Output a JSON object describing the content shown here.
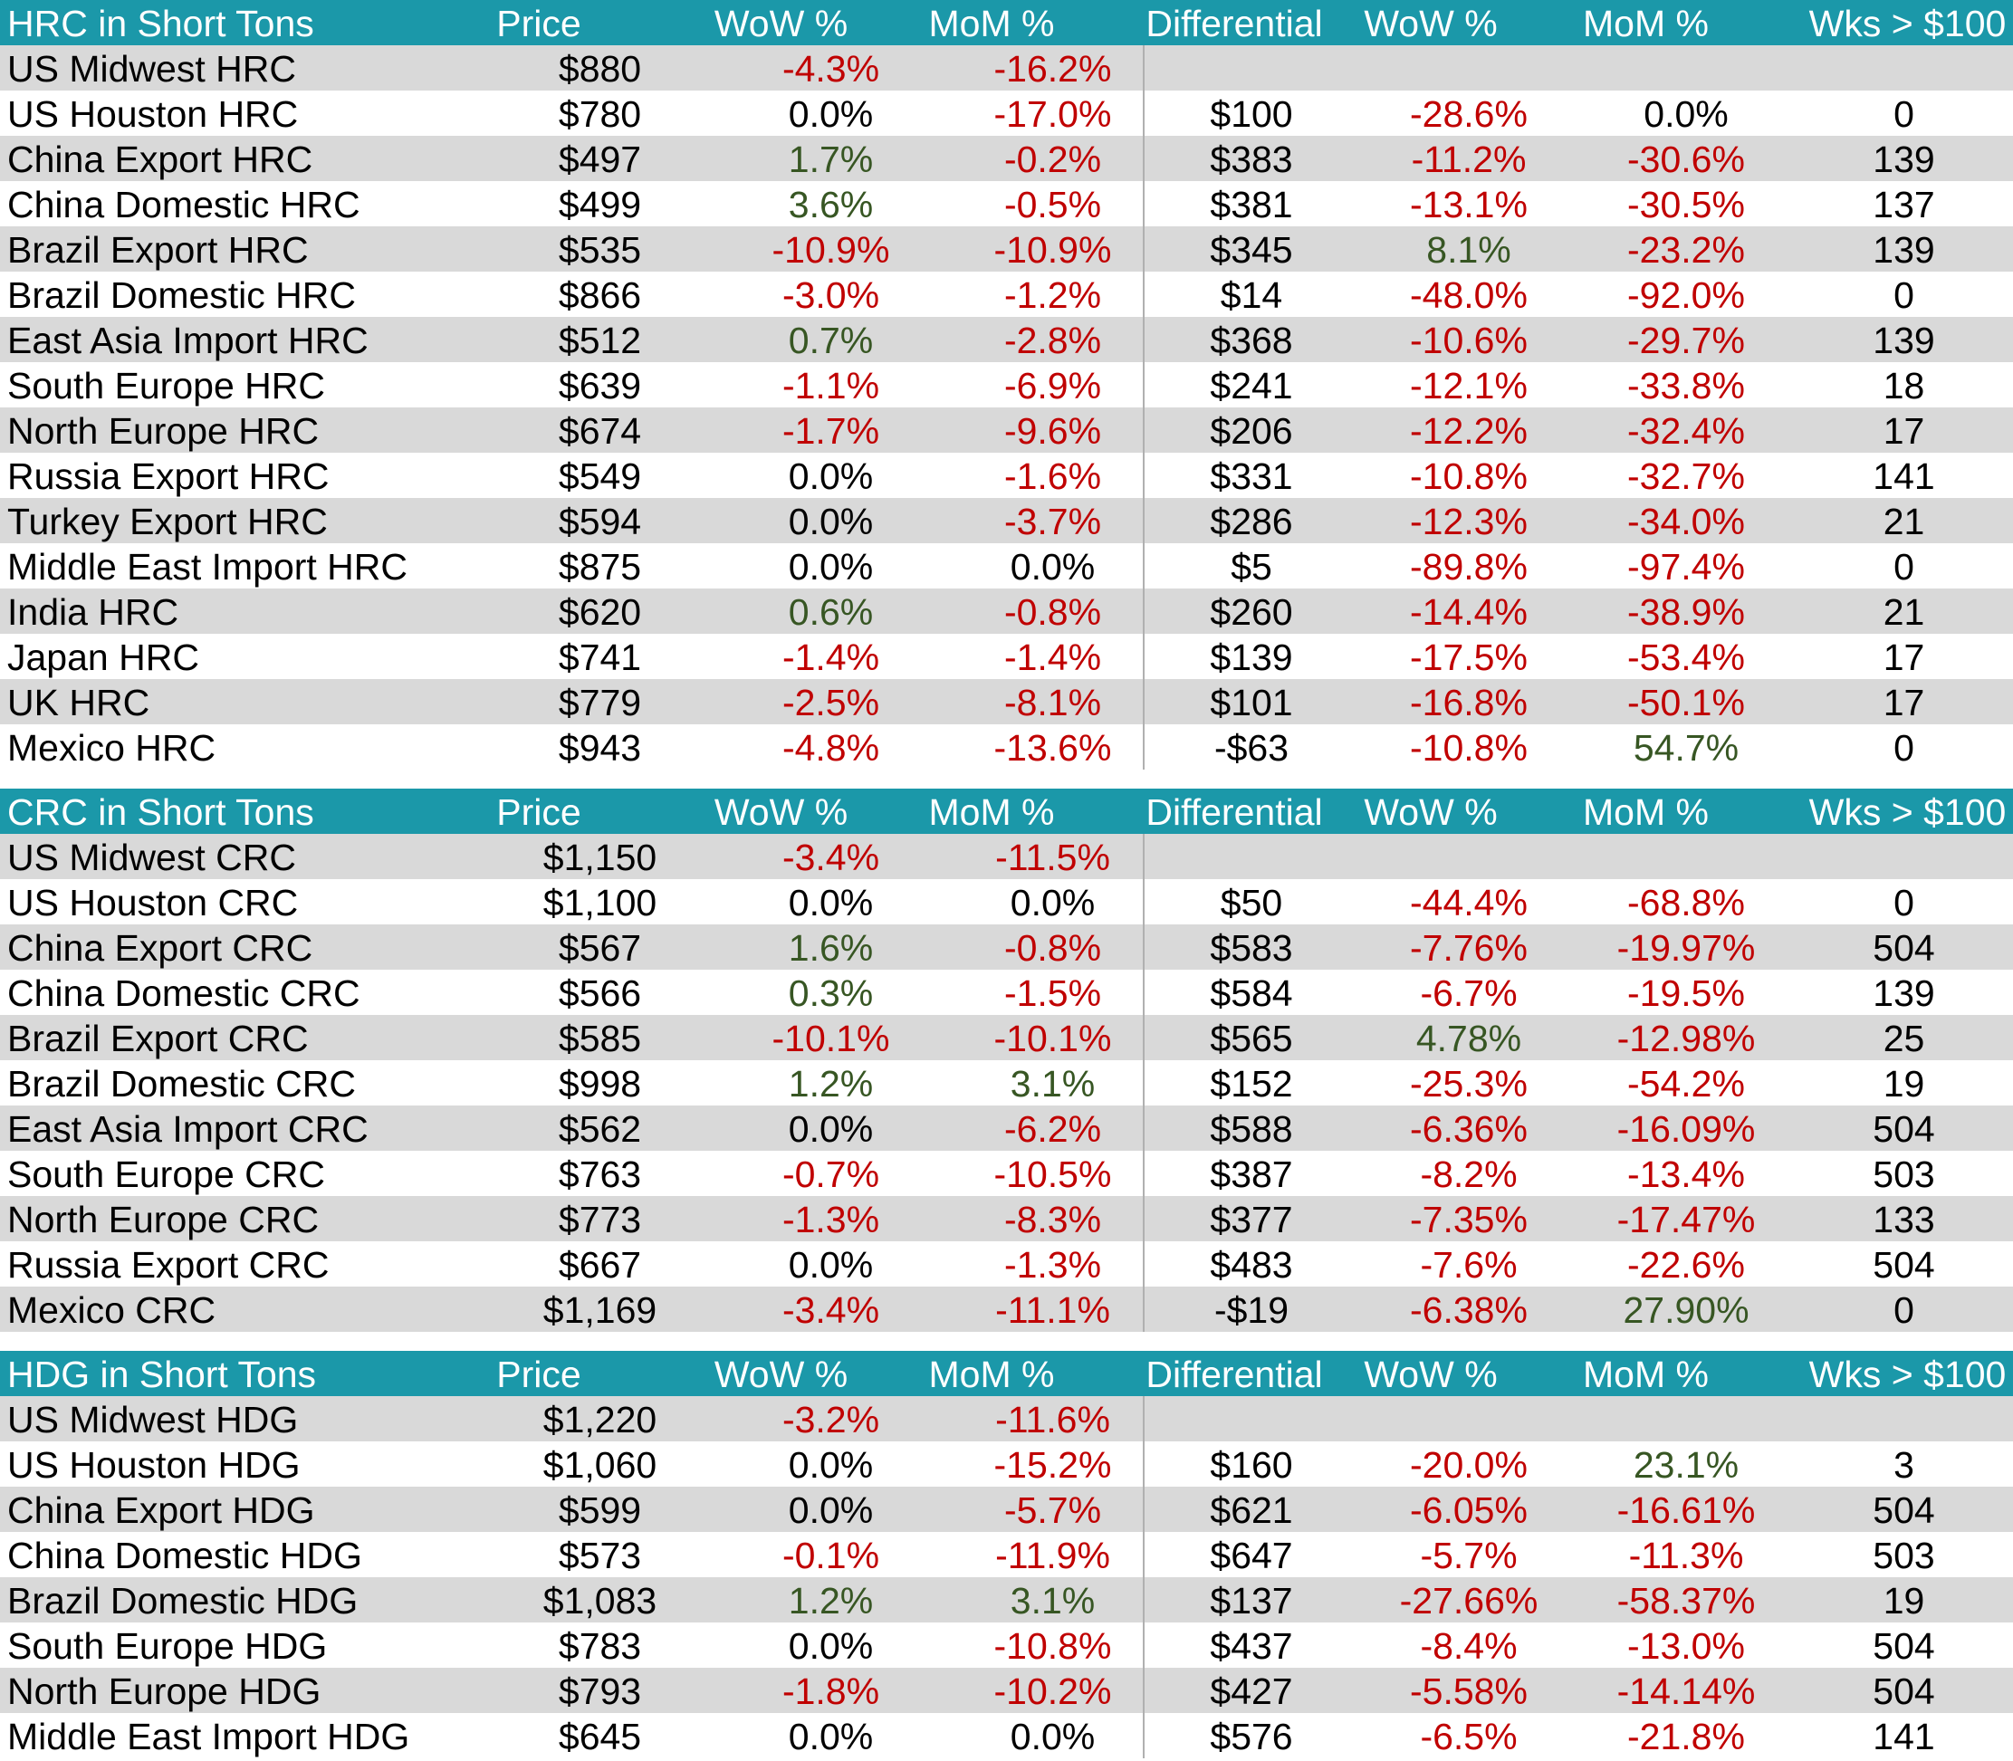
{
  "tables": [
    {
      "headers": [
        "HRC in Short Tons",
        "Price",
        "WoW %",
        "MoM %",
        "Differential",
        "WoW %",
        "MoM %",
        "Wks > $100"
      ],
      "rows": [
        [
          "US Midwest HRC",
          "$880",
          "-4.3%",
          "-16.2%",
          "",
          "",
          "",
          ""
        ],
        [
          "US Houston HRC",
          "$780",
          "0.0%",
          "-17.0%",
          "$100",
          "-28.6%",
          "0.0%",
          "0"
        ],
        [
          "China Export HRC",
          "$497",
          "1.7%",
          "-0.2%",
          "$383",
          "-11.2%",
          "-30.6%",
          "139"
        ],
        [
          "China Domestic HRC",
          "$499",
          "3.6%",
          "-0.5%",
          "$381",
          "-13.1%",
          "-30.5%",
          "137"
        ],
        [
          "Brazil Export HRC",
          "$535",
          "-10.9%",
          "-10.9%",
          "$345",
          "8.1%",
          "-23.2%",
          "139"
        ],
        [
          "Brazil Domestic HRC",
          "$866",
          "-3.0%",
          "-1.2%",
          "$14",
          "-48.0%",
          "-92.0%",
          "0"
        ],
        [
          "East Asia Import HRC",
          "$512",
          "0.7%",
          "-2.8%",
          "$368",
          "-10.6%",
          "-29.7%",
          "139"
        ],
        [
          "South Europe HRC",
          "$639",
          "-1.1%",
          "-6.9%",
          "$241",
          "-12.1%",
          "-33.8%",
          "18"
        ],
        [
          "North Europe HRC",
          "$674",
          "-1.7%",
          "-9.6%",
          "$206",
          "-12.2%",
          "-32.4%",
          "17"
        ],
        [
          "Russia Export HRC",
          "$549",
          "0.0%",
          "-1.6%",
          "$331",
          "-10.8%",
          "-32.7%",
          "141"
        ],
        [
          "Turkey Export HRC",
          "$594",
          "0.0%",
          "-3.7%",
          "$286",
          "-12.3%",
          "-34.0%",
          "21"
        ],
        [
          "Middle East Import HRC",
          "$875",
          "0.0%",
          "0.0%",
          "$5",
          "-89.8%",
          "-97.4%",
          "0"
        ],
        [
          "India HRC",
          "$620",
          "0.6%",
          "-0.8%",
          "$260",
          "-14.4%",
          "-38.9%",
          "21"
        ],
        [
          "Japan HRC",
          "$741",
          "-1.4%",
          "-1.4%",
          "$139",
          "-17.5%",
          "-53.4%",
          "17"
        ],
        [
          "UK HRC",
          "$779",
          "-2.5%",
          "-8.1%",
          "$101",
          "-16.8%",
          "-50.1%",
          "17"
        ],
        [
          "Mexico HRC",
          "$943",
          "-4.8%",
          "-13.6%",
          "-$63",
          "-10.8%",
          "54.7%",
          "0"
        ]
      ]
    },
    {
      "headers": [
        "CRC in Short Tons",
        "Price",
        "WoW %",
        "MoM %",
        "Differential",
        "WoW %",
        "MoM %",
        "Wks > $100"
      ],
      "rows": [
        [
          "US Midwest CRC",
          "$1,150",
          "-3.4%",
          "-11.5%",
          "",
          "",
          "",
          ""
        ],
        [
          "US Houston CRC",
          "$1,100",
          "0.0%",
          "0.0%",
          "$50",
          "-44.4%",
          "-68.8%",
          "0"
        ],
        [
          "China Export CRC",
          "$567",
          "1.6%",
          "-0.8%",
          "$583",
          "-7.76%",
          "-19.97%",
          "504"
        ],
        [
          "China Domestic CRC",
          "$566",
          "0.3%",
          "-1.5%",
          "$584",
          "-6.7%",
          "-19.5%",
          "139"
        ],
        [
          "Brazil Export CRC",
          "$585",
          "-10.1%",
          "-10.1%",
          "$565",
          "4.78%",
          "-12.98%",
          "25"
        ],
        [
          "Brazil Domestic CRC",
          "$998",
          "1.2%",
          "3.1%",
          "$152",
          "-25.3%",
          "-54.2%",
          "19"
        ],
        [
          "East Asia Import CRC",
          "$562",
          "0.0%",
          "-6.2%",
          "$588",
          "-6.36%",
          "-16.09%",
          "504"
        ],
        [
          "South Europe CRC",
          "$763",
          "-0.7%",
          "-10.5%",
          "$387",
          "-8.2%",
          "-13.4%",
          "503"
        ],
        [
          "North Europe CRC",
          "$773",
          "-1.3%",
          "-8.3%",
          "$377",
          "-7.35%",
          "-17.47%",
          "133"
        ],
        [
          "Russia Export CRC",
          "$667",
          "0.0%",
          "-1.3%",
          "$483",
          "-7.6%",
          "-22.6%",
          "504"
        ],
        [
          "Mexico CRC",
          "$1,169",
          "-3.4%",
          "-11.1%",
          "-$19",
          "-6.38%",
          "27.90%",
          "0"
        ]
      ]
    },
    {
      "headers": [
        "HDG in Short Tons",
        "Price",
        "WoW %",
        "MoM %",
        "Differential",
        "WoW %",
        "MoM %",
        "Wks > $100"
      ],
      "rows": [
        [
          "US Midwest HDG",
          "$1,220",
          "-3.2%",
          "-11.6%",
          "",
          "",
          "",
          ""
        ],
        [
          "US Houston HDG",
          "$1,060",
          "0.0%",
          "-15.2%",
          "$160",
          "-20.0%",
          "23.1%",
          "3"
        ],
        [
          "China Export HDG",
          "$599",
          "0.0%",
          "-5.7%",
          "$621",
          "-6.05%",
          "-16.61%",
          "504"
        ],
        [
          "China Domestic HDG",
          "$573",
          "-0.1%",
          "-11.9%",
          "$647",
          "-5.7%",
          "-11.3%",
          "503"
        ],
        [
          "Brazil Domestic HDG",
          "$1,083",
          "1.2%",
          "3.1%",
          "$137",
          "-27.66%",
          "-58.37%",
          "19"
        ],
        [
          "South Europe HDG",
          "$783",
          "0.0%",
          "-10.8%",
          "$437",
          "-8.4%",
          "-13.0%",
          "504"
        ],
        [
          "North Europe HDG",
          "$793",
          "-1.8%",
          "-10.2%",
          "$427",
          "-5.58%",
          "-14.14%",
          "504"
        ],
        [
          "Middle East Import HDG",
          "$645",
          "0.0%",
          "0.0%",
          "$576",
          "-6.5%",
          "-21.8%",
          "141"
        ]
      ]
    }
  ],
  "colors": {
    "header_bg": "#1b98a9",
    "header_text": "#ffffff",
    "alt_row_bg": "#d9d9d9",
    "negative": "#c00000",
    "positive": "#375623",
    "neutral": "#000000"
  }
}
